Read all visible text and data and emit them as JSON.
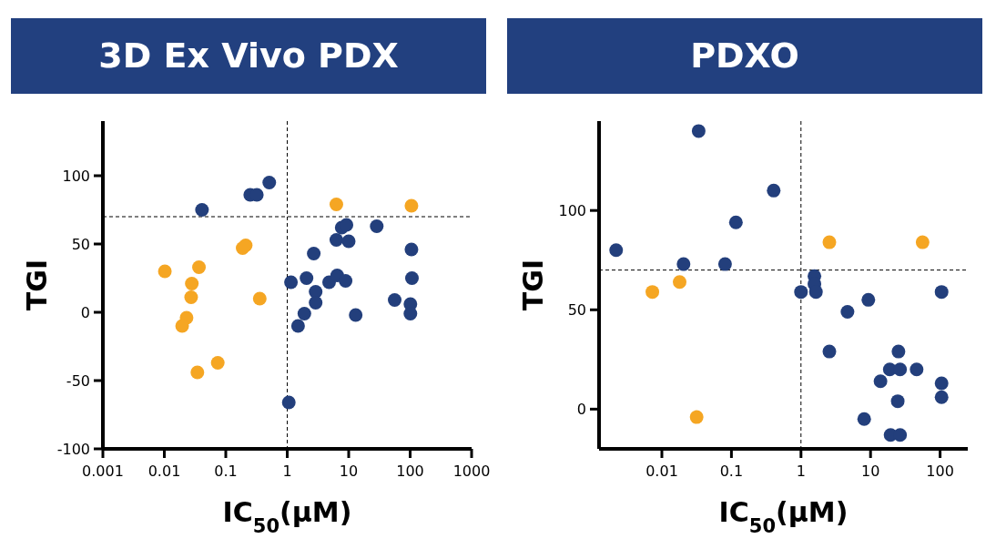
{
  "chart_data": [
    {
      "type": "scatter",
      "title": "3D Ex Vivo PDX",
      "xlabel": "IC$_{50}$(μM)",
      "ylabel": "TGI",
      "log": "x",
      "xlim": [
        0.001,
        1000
      ],
      "xticks": [
        0.001,
        0.01,
        0.1,
        1,
        10,
        100,
        1000
      ],
      "ylim": [
        -100,
        140
      ],
      "yticks": [
        -100,
        -50,
        0,
        50,
        100
      ],
      "marker": "circle",
      "grid": false,
      "ref_lines": [
        {
          "axis": "y",
          "value": 70,
          "line_style": "dashed",
          "color": "#000000"
        },
        {
          "axis": "x",
          "value": 1,
          "line_style": "dashed",
          "color": "#000000"
        }
      ],
      "series": [
        {
          "color": "#233f7c",
          "x": [
            0.041,
            0.25,
            0.32,
            0.51,
            1.15,
            1.5,
            1.9,
            2.7,
            2.06,
            2.9,
            2.9,
            4.8,
            6.5,
            8.9,
            6.3,
            10,
            7.7,
            9.2,
            28.6,
            13,
            1.06,
            56,
            105,
            107,
            101,
            101
          ],
          "values": [
            75,
            86,
            86,
            95,
            22,
            -10,
            -1,
            43,
            25,
            15,
            7,
            22,
            27,
            23,
            53,
            52,
            62,
            64,
            63,
            -2,
            -66,
            9,
            46,
            25,
            6,
            -1
          ]
        },
        {
          "color": "#f5a623",
          "x": [
            0.0102,
            0.0366,
            0.028,
            0.0273,
            0.023,
            0.0195,
            0.0345,
            0.074,
            0.188,
            0.211,
            0.357,
            6.3,
            105
          ],
          "values": [
            30,
            33,
            21,
            11,
            -4,
            -10,
            -44,
            -37,
            47,
            49,
            10,
            79,
            78
          ]
        }
      ]
    },
    {
      "type": "scatter",
      "title": "PDXO",
      "xlabel": "IC$_{50}$(μM)",
      "ylabel": "TGI",
      "log": "x",
      "xlim": [
        0.00125,
        250
      ],
      "xticks": [
        0.01,
        0.1,
        1,
        10,
        100
      ],
      "ylim": [
        -20,
        145
      ],
      "yticks": [
        0,
        50,
        100
      ],
      "marker": "circle",
      "grid": false,
      "ref_lines": [
        {
          "axis": "y",
          "value": 70,
          "line_style": "dashed",
          "color": "#000000"
        },
        {
          "axis": "x",
          "value": 1,
          "line_style": "dashed",
          "color": "#000000"
        }
      ],
      "series": [
        {
          "color": "#233f7c",
          "x": [
            0.0022,
            0.0338,
            0.0205,
            0.081,
            0.116,
            0.405,
            1,
            1.56,
            1.56,
            1.64,
            4.66,
            9.3,
            2.56,
            25.2,
            18.9,
            26.6,
            46,
            13.9,
            24.6,
            8.1,
            19.4,
            26.6,
            105,
            105,
            105
          ],
          "values": [
            80,
            140,
            73,
            73,
            94,
            110,
            59,
            67,
            63,
            59,
            49,
            55,
            29,
            29,
            20,
            20,
            20,
            14,
            4,
            -5,
            -13,
            -13,
            59,
            13,
            6
          ]
        },
        {
          "color": "#f5a623",
          "x": [
            0.0073,
            0.018,
            0.0316,
            2.56,
            56
          ],
          "values": [
            59,
            64,
            -4,
            84,
            84
          ]
        }
      ]
    }
  ]
}
